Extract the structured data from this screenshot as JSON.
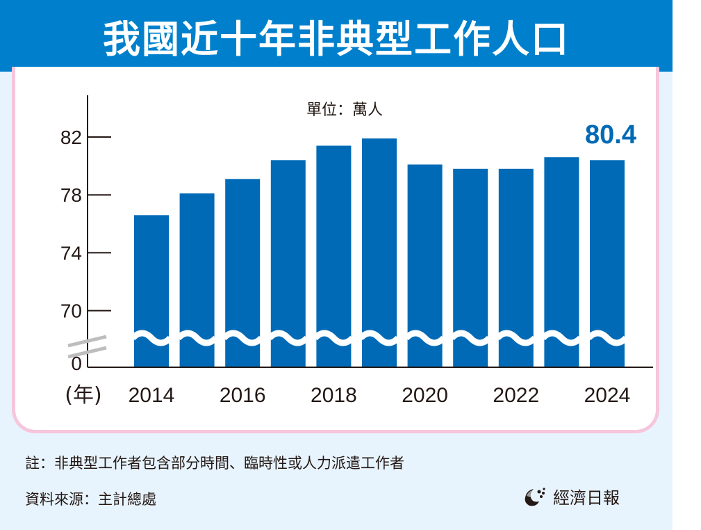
{
  "title": "我國近十年非典型工作人口",
  "colors": {
    "header": "#0080cc",
    "bar": "#006ab6",
    "highlight": "#006ab6",
    "panel_border": "#f6c6dc",
    "background": "#e8f4fd"
  },
  "chart_data": {
    "type": "bar",
    "title": "我國近十年非典型工作人口",
    "unit_label": "單位：萬人",
    "xlabel": "(年)",
    "ylabel": "",
    "categories": [
      "2014",
      "2015",
      "2016",
      "2017",
      "2018",
      "2019",
      "2020",
      "2021",
      "2022",
      "2023",
      "2024"
    ],
    "x_tick_labels": [
      "2014",
      "2016",
      "2018",
      "2020",
      "2022",
      "2024"
    ],
    "values": [
      76.6,
      78.1,
      79.1,
      80.4,
      81.4,
      81.9,
      80.1,
      79.8,
      79.8,
      80.6,
      80.4
    ],
    "y_ticks": [
      "82",
      "78",
      "74",
      "70",
      "0"
    ],
    "ylim": [
      68.5,
      84
    ],
    "axis_break": true,
    "annotations": [
      {
        "category": "2024",
        "text": "80.4"
      }
    ],
    "grid": false,
    "legend": "none"
  },
  "notes": {
    "footnote": "註：非典型工作者包含部分時間、臨時性或人力派遣工作者",
    "source": "資料來源：主計總處"
  },
  "logo": {
    "text": "經濟日報",
    "icon": "udn-logo-icon"
  }
}
